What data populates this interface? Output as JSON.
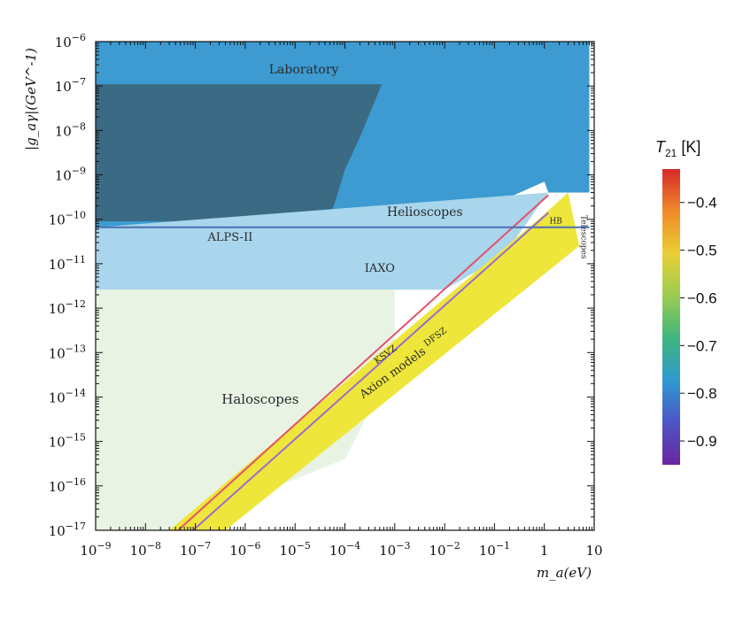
{
  "chart_data": {
    "type": "area",
    "title": "",
    "xlabel": "m_a(eV)",
    "ylabel": "|g_aγ|(GeV^-1)",
    "x_scale": "log",
    "y_scale": "log",
    "xlim": [
      1e-09,
      10
    ],
    "ylim": [
      1e-17,
      1e-06
    ],
    "x_ticks": [
      {
        "value": 1e-09,
        "base": "10",
        "exp": "−9"
      },
      {
        "value": 1e-08,
        "base": "10",
        "exp": "−8"
      },
      {
        "value": 1e-07,
        "base": "10",
        "exp": "−7"
      },
      {
        "value": 1e-06,
        "base": "10",
        "exp": "−6"
      },
      {
        "value": 1e-05,
        "base": "10",
        "exp": "−5"
      },
      {
        "value": 0.0001,
        "base": "10",
        "exp": "−4"
      },
      {
        "value": 0.001,
        "base": "10",
        "exp": "−3"
      },
      {
        "value": 0.01,
        "base": "10",
        "exp": "−2"
      },
      {
        "value": 0.1,
        "base": "10",
        "exp": "−1"
      },
      {
        "value": 1,
        "base": "1",
        "exp": ""
      },
      {
        "value": 10,
        "base": "10",
        "exp": ""
      }
    ],
    "y_ticks": [
      {
        "value": 1e-06,
        "base": "10",
        "exp": "−6"
      },
      {
        "value": 1e-07,
        "base": "10",
        "exp": "−7"
      },
      {
        "value": 1e-08,
        "base": "10",
        "exp": "−8"
      },
      {
        "value": 1e-09,
        "base": "10",
        "exp": "−9"
      },
      {
        "value": 1e-10,
        "base": "10",
        "exp": "−10"
      },
      {
        "value": 1e-11,
        "base": "10",
        "exp": "−11"
      },
      {
        "value": 1e-12,
        "base": "10",
        "exp": "−12"
      },
      {
        "value": 1e-13,
        "base": "10",
        "exp": "−13"
      },
      {
        "value": 1e-14,
        "base": "10",
        "exp": "−14"
      },
      {
        "value": 1e-15,
        "base": "10",
        "exp": "−15"
      },
      {
        "value": 1e-16,
        "base": "10",
        "exp": "−16"
      },
      {
        "value": 1e-17,
        "base": "10",
        "exp": "−17"
      }
    ],
    "regions": [
      {
        "name": "Laboratory",
        "color": "#6b6b6b",
        "points": [
          [
            1e-09,
            1e-06
          ],
          [
            0.0002,
            1e-06
          ],
          [
            0.0004,
            1.5e-07
          ],
          [
            1e-09,
            1.5e-07
          ]
        ]
      },
      {
        "name": "Helioscopes",
        "color": "#3d9bd2",
        "points": [
          [
            1e-09,
            1e-06
          ],
          [
            8,
            1e-06
          ],
          [
            8,
            4e-10
          ],
          [
            1.2,
            4e-10
          ],
          [
            1,
            7e-10
          ],
          [
            0.02,
            1e-10
          ],
          [
            0.001,
            6.6e-11
          ],
          [
            1e-09,
            6.6e-11
          ]
        ]
      },
      {
        "name": "Laboratory-dark",
        "color": "#3b6a84",
        "points": [
          [
            1e-09,
            1.1e-07
          ],
          [
            0.00055,
            1.1e-07
          ],
          [
            0.0002,
            7e-09
          ],
          [
            0.0001,
            1.3e-09
          ],
          [
            6e-05,
            2e-10
          ],
          [
            4e-05,
            9e-11
          ],
          [
            1e-09,
            9e-11
          ]
        ]
      },
      {
        "name": "ALPS-II",
        "color": "#b8dff2",
        "points": [
          [
            1e-09,
            2e-11
          ],
          [
            0.001,
            2e-11
          ],
          [
            0.001,
            6.6e-11
          ],
          [
            1e-09,
            6.6e-11
          ]
        ]
      },
      {
        "name": "IAXO",
        "color": "#a9d6ec",
        "points": [
          [
            1e-09,
            2.6e-12
          ],
          [
            0.01,
            2.6e-12
          ],
          [
            0.15,
            1.5e-11
          ],
          [
            1.2,
            4e-10
          ],
          [
            1e-09,
            6.6e-11
          ]
        ]
      },
      {
        "name": "Haloscopes-future",
        "color": "#e8f3e4",
        "points": [
          [
            1e-09,
            2.6e-12
          ],
          [
            0.001,
            2.6e-12
          ],
          [
            0.001,
            6e-14
          ],
          [
            0.0001,
            4e-16
          ],
          [
            1e-06,
            5e-17
          ],
          [
            2e-07,
            2e-17
          ],
          [
            3e-08,
            1e-17
          ],
          [
            1e-09,
            1e-17
          ]
        ]
      },
      {
        "name": "Axion models",
        "color": "#eee63a",
        "points": [
          [
            3e-08,
            1e-17
          ],
          [
            1,
            1.3e-10
          ],
          [
            3,
            4e-10
          ],
          [
            5,
            2.5e-11
          ],
          [
            4e-07,
            1e-17
          ]
        ]
      }
    ],
    "lines": [
      {
        "name": "KSVZ",
        "color": "#e0536a",
        "points": [
          [
            4.5e-08,
            1e-17
          ],
          [
            1.2,
            3.5e-10
          ]
        ]
      },
      {
        "name": "DFSZ",
        "color": "#9a6bd0",
        "points": [
          [
            9e-08,
            1e-17
          ],
          [
            1.2,
            1.4e-10
          ]
        ]
      },
      {
        "name": "HB",
        "color": "#4a6fb5",
        "points": [
          [
            1e-09,
            6.6e-11
          ],
          [
            8,
            6.6e-11
          ]
        ]
      }
    ],
    "annotations": [
      {
        "text": "Laboratory",
        "x": 1.5e-05,
        "y": 1.9e-07
      },
      {
        "text": "Helioscopes",
        "x": 0.004,
        "y": 1.2e-10
      },
      {
        "text": "ALPS-II",
        "x": 5e-07,
        "y": 3.3e-11
      },
      {
        "text": "IAXO",
        "x": 0.0005,
        "y": 6.6e-12
      },
      {
        "text": "Haloscopes",
        "x": 2e-06,
        "y": 7e-15
      },
      {
        "text": "KSVZ",
        "x": 0.0007,
        "y": 8e-14
      },
      {
        "text": "DFSZ",
        "x": 0.007,
        "y": 2e-13
      },
      {
        "text": "Axion models",
        "x": 0.001,
        "y": 3e-14
      },
      {
        "text": "HB",
        "x": 1.7,
        "y": 8e-11
      },
      {
        "text": "Telescopes",
        "x": 5.5,
        "y": 4e-11
      }
    ],
    "colorbar": {
      "title": "T",
      "title_sub": "21",
      "title_unit": "[K]",
      "min": -0.95,
      "max": -0.33,
      "ticks": [
        -0.4,
        -0.5,
        -0.6,
        -0.7,
        -0.8,
        -0.9
      ],
      "tick_labels": [
        "−0.4",
        "−0.5",
        "−0.6",
        "−0.7",
        "−0.8",
        "−0.9"
      ],
      "colors": [
        "#d62a2a",
        "#f08a2a",
        "#e8cf34",
        "#9ccc52",
        "#3fb57e",
        "#2f9ad0",
        "#4c55c6",
        "#6a27a0"
      ]
    }
  }
}
